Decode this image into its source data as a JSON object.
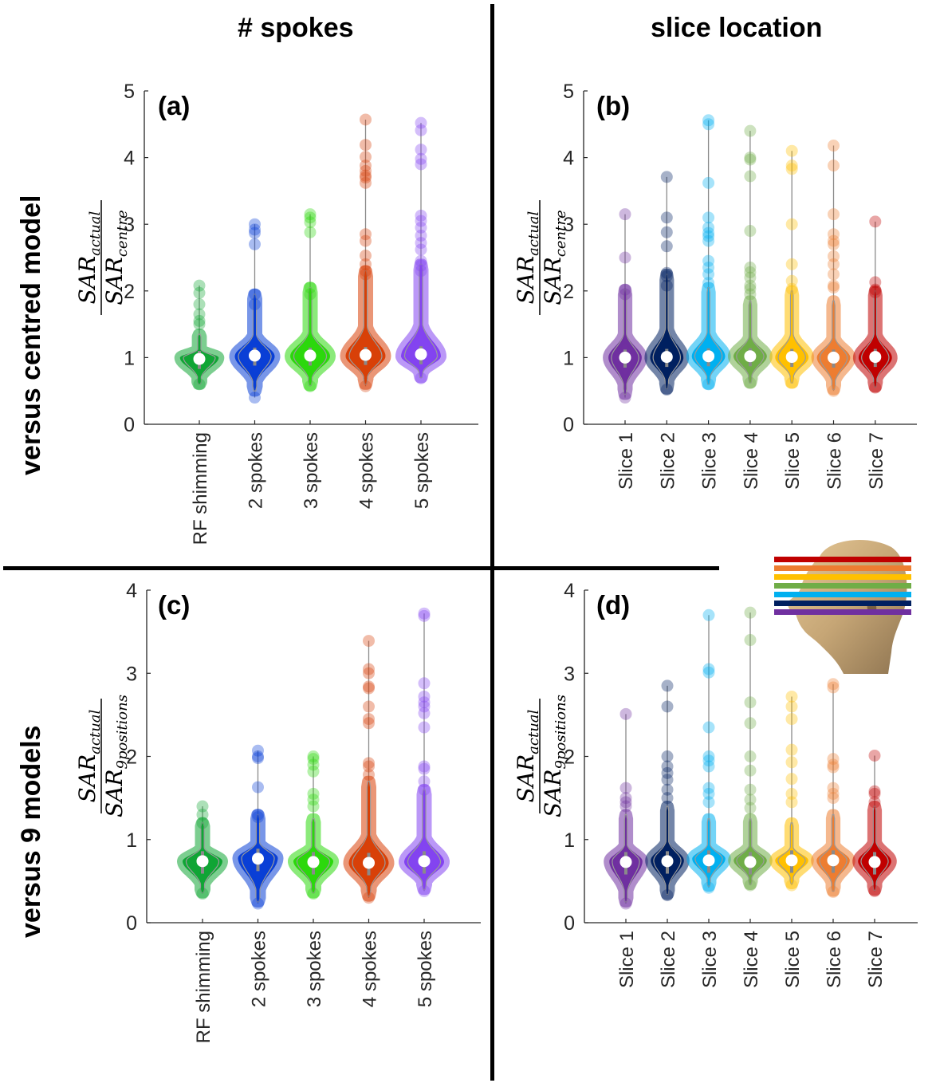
{
  "figure": {
    "column_titles": [
      "# spokes",
      "slice location"
    ],
    "row_titles": [
      "versus centred model",
      "versus 9 models"
    ],
    "inset": {
      "name": "head-model-with-slice-bands",
      "slice_band_colors_top_to_bottom": [
        "#c00000",
        "#ed7d31",
        "#ffc000",
        "#70ad47",
        "#00b0f0",
        "#002060",
        "#7030a0"
      ]
    }
  },
  "chart_data": [
    {
      "panel": "(a)",
      "type": "violin",
      "ylabel_num": "SAR_actual",
      "ylabel_den": "SAR_centre",
      "ylim": [
        0,
        5
      ],
      "yticks": [
        0,
        1,
        2,
        3,
        4,
        5
      ],
      "categories": [
        "RF shimming",
        "2 spokes",
        "3 spokes",
        "4 spokes",
        "5 spokes"
      ],
      "colors": [
        "#10a535",
        "#0a3fd6",
        "#2cd80c",
        "#d84008",
        "#8344f0"
      ],
      "series": [
        {
          "name": "RF shimming",
          "median": 0.98,
          "min": 0.6,
          "max": 2.08,
          "body_low": 0.6,
          "body_high": 1.35,
          "peak": 1.0,
          "width": 0.7,
          "outliers": [
            2.08,
            1.97,
            1.8,
            1.65,
            1.55,
            1.5
          ]
        },
        {
          "name": "2 spokes",
          "median": 1.03,
          "min": 0.4,
          "max": 3.0,
          "body_low": 0.5,
          "body_high": 1.95,
          "peak": 1.02,
          "width": 0.72,
          "outliers": [
            3.0,
            2.92,
            2.87,
            2.7,
            1.95,
            1.8
          ]
        },
        {
          "name": "3 spokes",
          "median": 1.03,
          "min": 0.57,
          "max": 3.15,
          "body_low": 0.58,
          "body_high": 2.05,
          "peak": 1.02,
          "width": 0.72,
          "outliers": [
            3.15,
            3.1,
            3.03,
            2.88,
            2.05,
            1.95
          ]
        },
        {
          "name": "4 spokes",
          "median": 1.04,
          "min": 0.57,
          "max": 4.57,
          "body_low": 0.6,
          "body_high": 2.3,
          "peak": 1.02,
          "width": 0.72,
          "outliers": [
            4.57,
            4.19,
            4.01,
            3.88,
            3.8,
            3.73,
            3.7,
            3.62,
            2.85,
            2.75,
            2.53,
            2.4,
            2.3,
            2.25
          ]
        },
        {
          "name": "5 spokes",
          "median": 1.05,
          "min": 0.69,
          "max": 4.52,
          "body_low": 0.7,
          "body_high": 2.4,
          "peak": 1.02,
          "width": 0.72,
          "outliers": [
            4.52,
            4.41,
            4.12,
            3.98,
            3.9,
            3.13,
            3.05,
            2.95,
            2.83,
            2.72,
            2.62,
            2.45,
            2.38,
            2.3
          ]
        }
      ]
    },
    {
      "panel": "(b)",
      "type": "violin",
      "ylabel_num": "SAR_actual",
      "ylabel_den": "SAR_centre",
      "ylim": [
        0,
        5
      ],
      "yticks": [
        0,
        1,
        2,
        3,
        4,
        5
      ],
      "categories": [
        "Slice 1",
        "Slice 2",
        "Slice 3",
        "Slice 4",
        "Slice 5",
        "Slice 6",
        "Slice 7"
      ],
      "colors": [
        "#7030a0",
        "#002060",
        "#00b0f0",
        "#70ad47",
        "#ffc000",
        "#ed7d31",
        "#c00000"
      ],
      "series": [
        {
          "name": "Slice 1",
          "median": 1.0,
          "min": 0.4,
          "max": 3.15,
          "body_low": 0.45,
          "body_high": 2.02,
          "peak": 1.0,
          "width": 0.8,
          "outliers": [
            3.15,
            2.5,
            2.02,
            1.95
          ]
        },
        {
          "name": "Slice 2",
          "median": 1.01,
          "min": 0.52,
          "max": 3.71,
          "body_low": 0.53,
          "body_high": 2.25,
          "peak": 1.0,
          "width": 0.8,
          "outliers": [
            3.71,
            3.1,
            2.88,
            2.67,
            2.27,
            2.22,
            2.08
          ]
        },
        {
          "name": "Slice 3",
          "median": 1.02,
          "min": 0.6,
          "max": 4.56,
          "body_low": 0.6,
          "body_high": 2.05,
          "peak": 1.02,
          "width": 0.8,
          "outliers": [
            4.56,
            4.5,
            3.62,
            3.1,
            2.95,
            2.87,
            2.82,
            2.75,
            2.45,
            2.35,
            2.25,
            2.12
          ]
        },
        {
          "name": "Slice 4",
          "median": 1.02,
          "min": 0.62,
          "max": 4.4,
          "body_low": 0.62,
          "body_high": 1.85,
          "peak": 1.02,
          "width": 0.8,
          "outliers": [
            4.4,
            4.0,
            3.97,
            3.72,
            2.9,
            2.35,
            2.28,
            2.2,
            2.08,
            2.03,
            1.95
          ]
        },
        {
          "name": "Slice 5",
          "median": 1.01,
          "min": 0.62,
          "max": 4.1,
          "body_low": 0.62,
          "body_high": 2.0,
          "peak": 1.0,
          "width": 0.8,
          "outliers": [
            4.1,
            3.88,
            3.83,
            3.0,
            2.4,
            2.15,
            2.03
          ]
        },
        {
          "name": "Slice 6",
          "median": 1.0,
          "min": 0.5,
          "max": 4.18,
          "body_low": 0.52,
          "body_high": 1.85,
          "peak": 1.0,
          "width": 0.8,
          "outliers": [
            4.18,
            3.88,
            3.15,
            2.85,
            2.75,
            2.7,
            2.52,
            2.4,
            2.25,
            2.08,
            2.05
          ]
        },
        {
          "name": "Slice 7",
          "median": 1.01,
          "min": 0.55,
          "max": 3.04,
          "body_low": 0.56,
          "body_high": 2.0,
          "peak": 1.0,
          "width": 0.8,
          "outliers": [
            3.04,
            2.13,
            2.02,
            1.98
          ]
        }
      ]
    },
    {
      "panel": "(c)",
      "type": "violin",
      "ylabel_num": "SAR_actual",
      "ylabel_den": "SAR_9positions",
      "ylim": [
        0,
        4
      ],
      "yticks": [
        0,
        1,
        2,
        3,
        4
      ],
      "categories": [
        "RF shimming",
        "2 spokes",
        "3 spokes",
        "4 spokes",
        "5 spokes"
      ],
      "colors": [
        "#10a535",
        "#0a3fd6",
        "#2cd80c",
        "#d84008",
        "#8344f0"
      ],
      "series": [
        {
          "name": "RF shimming",
          "median": 0.74,
          "min": 0.35,
          "max": 1.4,
          "body_low": 0.36,
          "body_high": 1.2,
          "peak": 0.74,
          "width": 0.72,
          "outliers": [
            1.4,
            1.3,
            1.2
          ]
        },
        {
          "name": "2 spokes",
          "median": 0.77,
          "min": 0.23,
          "max": 2.07,
          "body_low": 0.25,
          "body_high": 1.3,
          "peak": 0.78,
          "width": 0.72,
          "outliers": [
            2.07,
            2.0,
            1.98,
            1.63,
            1.3,
            1.27
          ]
        },
        {
          "name": "3 spokes",
          "median": 0.73,
          "min": 0.35,
          "max": 2.0,
          "body_low": 0.36,
          "body_high": 1.25,
          "peak": 0.74,
          "width": 0.72,
          "outliers": [
            2.0,
            1.97,
            1.9,
            1.82,
            1.55,
            1.48,
            1.4
          ]
        },
        {
          "name": "4 spokes",
          "median": 0.72,
          "min": 0.3,
          "max": 3.39,
          "body_low": 0.32,
          "body_high": 1.7,
          "peak": 0.72,
          "width": 0.72,
          "outliers": [
            3.39,
            3.05,
            3.0,
            2.84,
            2.82,
            2.6,
            2.45,
            2.4,
            1.92,
            1.88,
            1.78
          ]
        },
        {
          "name": "5 spokes",
          "median": 0.74,
          "min": 0.38,
          "max": 3.72,
          "body_low": 0.4,
          "body_high": 1.6,
          "peak": 0.73,
          "width": 0.72,
          "outliers": [
            3.72,
            3.69,
            2.88,
            2.72,
            2.65,
            2.6,
            2.52,
            2.35,
            1.88,
            1.85,
            1.7,
            1.6
          ]
        }
      ]
    },
    {
      "panel": "(d)",
      "type": "violin",
      "ylabel_num": "SAR_actual",
      "ylabel_den": "SAR_9positions",
      "ylim": [
        0,
        4
      ],
      "yticks": [
        0,
        1,
        2,
        3,
        4
      ],
      "categories": [
        "Slice 1",
        "Slice 2",
        "Slice 3",
        "Slice 4",
        "Slice 5",
        "Slice 6",
        "Slice 7"
      ],
      "colors": [
        "#7030a0",
        "#002060",
        "#00b0f0",
        "#70ad47",
        "#ffc000",
        "#ed7d31",
        "#c00000"
      ],
      "series": [
        {
          "name": "Slice 1",
          "median": 0.73,
          "min": 0.23,
          "max": 2.51,
          "body_low": 0.25,
          "body_high": 1.3,
          "peak": 0.74,
          "width": 0.8,
          "outliers": [
            2.51,
            1.62,
            1.5,
            1.45,
            1.4
          ]
        },
        {
          "name": "Slice 2",
          "median": 0.74,
          "min": 0.33,
          "max": 2.85,
          "body_low": 0.34,
          "body_high": 1.4,
          "peak": 0.75,
          "width": 0.8,
          "outliers": [
            2.85,
            2.6,
            2.0,
            1.88,
            1.8,
            1.72,
            1.6,
            1.5
          ]
        },
        {
          "name": "Slice 3",
          "median": 0.75,
          "min": 0.42,
          "max": 3.7,
          "body_low": 0.44,
          "body_high": 1.25,
          "peak": 0.77,
          "width": 0.8,
          "outliers": [
            3.7,
            3.05,
            3.01,
            2.35,
            2.0,
            1.95,
            1.88,
            1.62,
            1.55,
            1.45
          ]
        },
        {
          "name": "Slice 4",
          "median": 0.73,
          "min": 0.45,
          "max": 3.73,
          "body_low": 0.46,
          "body_high": 1.25,
          "peak": 0.75,
          "width": 0.8,
          "outliers": [
            3.73,
            3.4,
            2.65,
            2.4,
            2.0,
            1.83,
            1.6,
            1.48,
            1.38
          ]
        },
        {
          "name": "Slice 5",
          "median": 0.75,
          "min": 0.45,
          "max": 2.72,
          "body_low": 0.47,
          "body_high": 1.2,
          "peak": 0.75,
          "width": 0.8,
          "outliers": [
            2.72,
            2.6,
            2.45,
            2.08,
            1.93,
            1.73,
            1.55,
            1.45
          ]
        },
        {
          "name": "Slice 6",
          "median": 0.75,
          "min": 0.37,
          "max": 2.87,
          "body_low": 0.38,
          "body_high": 1.3,
          "peak": 0.75,
          "width": 0.8,
          "outliers": [
            2.87,
            2.83,
            1.97,
            1.9,
            1.87,
            1.62,
            1.55,
            1.5
          ]
        },
        {
          "name": "Slice 7",
          "median": 0.73,
          "min": 0.38,
          "max": 2.01,
          "body_low": 0.39,
          "body_high": 1.4,
          "peak": 0.74,
          "width": 0.8,
          "outliers": [
            2.01,
            1.58,
            1.55,
            1.45
          ]
        }
      ]
    }
  ]
}
